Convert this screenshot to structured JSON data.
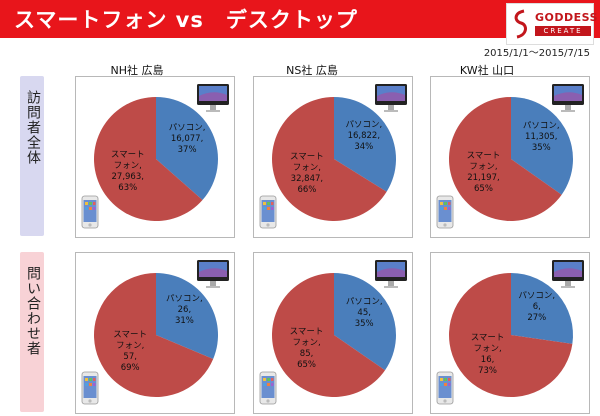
{
  "header": {
    "title": "スマートフォン vs　デスクトップ",
    "logo_name": "GODDESS",
    "logo_sub": "CREATE"
  },
  "date_range": "2015/1/1～2015/7/15",
  "rows": [
    {
      "label": "訪問者全体",
      "color": "#d8d8f0"
    },
    {
      "label": "問い合わせ者",
      "color": "#f8d2d6"
    }
  ],
  "colors": {
    "pc": "#4a7ebb",
    "sp": "#be4b48",
    "header": "#e8151b"
  },
  "chart_data": [
    {
      "type": "pie",
      "title": "NH社 広島",
      "row": "訪問者全体",
      "slices": [
        {
          "label": "パソコン",
          "value": 16077,
          "percent": 37,
          "text": "パソコン, 16,077 , 37%"
        },
        {
          "label": "スマートフォン",
          "value": 27963,
          "percent": 63,
          "text": "スマートフォン, 27,963 , 63%"
        }
      ]
    },
    {
      "type": "pie",
      "title": "NS社 広島",
      "row": "訪問者全体",
      "slices": [
        {
          "label": "パソコン",
          "value": 16822,
          "percent": 34,
          "text": "パソコン, 16,822 , 34%"
        },
        {
          "label": "スマートフォン",
          "value": 32847,
          "percent": 66,
          "text": "スマートフォン, 32,847 , 66%"
        }
      ]
    },
    {
      "type": "pie",
      "title": "KW社 山口",
      "row": "訪問者全体",
      "slices": [
        {
          "label": "パソコン",
          "value": 11305,
          "percent": 35,
          "text": "パソコン, 11,305 , 35%"
        },
        {
          "label": "スマートフォン",
          "value": 21197,
          "percent": 65,
          "text": "スマートフォン, 21,197 , 65%"
        }
      ]
    },
    {
      "type": "pie",
      "title": "NH社 広島",
      "row": "問い合わせ者",
      "slices": [
        {
          "label": "パソコン",
          "value": 26,
          "percent": 31,
          "text": "パソコン, 26, 31%"
        },
        {
          "label": "スマートフォン",
          "value": 57,
          "percent": 69,
          "text": "スマートフォン, 57, 69%"
        }
      ]
    },
    {
      "type": "pie",
      "title": "NS社 広島",
      "row": "問い合わせ者",
      "slices": [
        {
          "label": "パソコン",
          "value": 45,
          "percent": 35,
          "text": "パソコン, 45, 35%"
        },
        {
          "label": "スマートフォン",
          "value": 85,
          "percent": 65,
          "text": "スマートフォン, 85, 65%"
        }
      ]
    },
    {
      "type": "pie",
      "title": "KW社 山口",
      "row": "問い合わせ者",
      "slices": [
        {
          "label": "パソコン",
          "value": 6,
          "percent": 27,
          "text": "パソコン, 6, 27%"
        },
        {
          "label": "スマートフォン",
          "value": 16,
          "percent": 73,
          "text": "スマートフォン, 16, 73%"
        }
      ]
    }
  ]
}
